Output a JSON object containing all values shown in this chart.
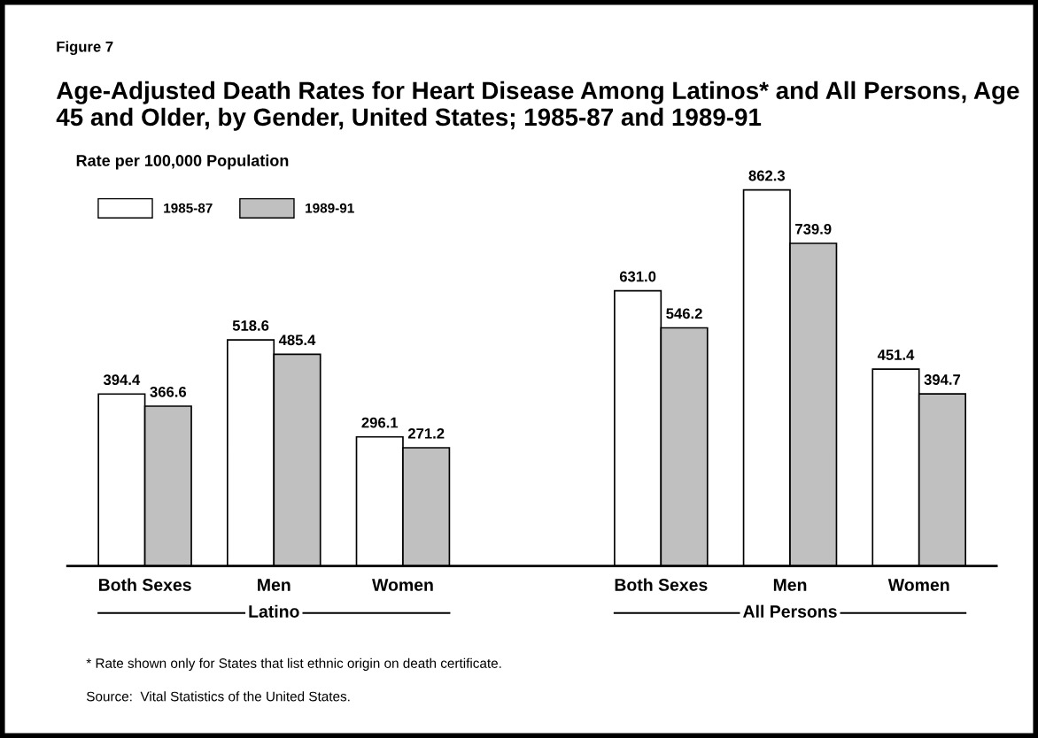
{
  "chart_data": {
    "type": "bar",
    "title": "Age-Adjusted Death Rates for Heart Disease Among Latinos* and All Persons, Age 45 and Older, by Gender, United States; 1985-87 and 1989-91",
    "ylabel": "Rate per 100,000 Population",
    "categories": [
      "Both Sexes",
      "Men",
      "Women",
      null,
      "Both Sexes",
      "Men",
      "Women"
    ],
    "series": [
      {
        "name": "1985-87",
        "color": "#ffffff",
        "values": [
          394.4,
          518.6,
          296.1,
          null,
          631.0,
          862.3,
          451.4
        ],
        "value_labels": [
          "394.4",
          "518.6",
          "296.1",
          null,
          "631.0",
          "862.3",
          "451.4"
        ]
      },
      {
        "name": "1989-91",
        "color": "#c0c0c0",
        "values": [
          366.6,
          485.4,
          271.2,
          null,
          546.2,
          739.9,
          394.7
        ],
        "value_labels": [
          "366.6",
          "485.4",
          "271.2",
          null,
          "546.2",
          "739.9",
          "394.7"
        ]
      }
    ],
    "legend": "top left",
    "annotations": [
      "Figure 7",
      "Latino",
      "All Persons",
      "* Rate shown only for States that list ethnic origin on death certificate.",
      "Source:  Vital Statistics of the United States."
    ]
  }
}
